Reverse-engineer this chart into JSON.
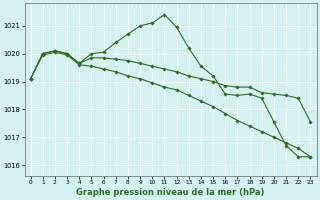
{
  "title": "Graphe pression niveau de la mer (hPa)",
  "background_color": "#d4f0f0",
  "grid_color": "#b8dede",
  "line_color": "#2d6e1e",
  "ylim": [
    1015.6,
    1021.8
  ],
  "xlim": [
    -0.5,
    23.5
  ],
  "yticks": [
    1016,
    1017,
    1018,
    1019,
    1020,
    1021
  ],
  "xticks": [
    0,
    1,
    2,
    3,
    4,
    5,
    6,
    7,
    8,
    9,
    10,
    11,
    12,
    13,
    14,
    15,
    16,
    17,
    18,
    19,
    20,
    21,
    22,
    23
  ],
  "series1_x": [
    0,
    1,
    2,
    3,
    4,
    5,
    6,
    7,
    8,
    9,
    10,
    11,
    12,
    13,
    14,
    15,
    16,
    17,
    18,
    19,
    20,
    21,
    22,
    23
  ],
  "series1_y": [
    1019.1,
    1020.0,
    1020.1,
    1020.0,
    1019.65,
    1020.0,
    1020.05,
    1020.4,
    1020.7,
    1021.0,
    1021.1,
    1021.4,
    1020.95,
    1020.2,
    1019.55,
    1019.2,
    1018.55,
    1018.5,
    1018.55,
    1018.4,
    1017.55,
    1016.7,
    1016.3,
    1016.3
  ],
  "series2_x": [
    0,
    1,
    2,
    3,
    4,
    5,
    6,
    7,
    8,
    9,
    10,
    11,
    12,
    13,
    14,
    15,
    16,
    17,
    18,
    19,
    20,
    21,
    22,
    23
  ],
  "series2_y": [
    1019.1,
    1020.0,
    1020.1,
    1020.0,
    1019.65,
    1019.85,
    1019.85,
    1019.8,
    1019.75,
    1019.65,
    1019.55,
    1019.45,
    1019.35,
    1019.2,
    1019.1,
    1019.0,
    1018.85,
    1018.8,
    1018.8,
    1018.6,
    1018.55,
    1018.5,
    1018.4,
    1017.55
  ],
  "series3_x": [
    0,
    1,
    2,
    3,
    4,
    5,
    6,
    7,
    8,
    9,
    10,
    11,
    12,
    13,
    14,
    15,
    16,
    17,
    18,
    19,
    20,
    21,
    22,
    23
  ],
  "series3_y": [
    1019.1,
    1019.95,
    1020.05,
    1019.95,
    1019.6,
    1019.55,
    1019.45,
    1019.35,
    1019.2,
    1019.1,
    1018.95,
    1018.8,
    1018.7,
    1018.5,
    1018.3,
    1018.1,
    1017.85,
    1017.6,
    1017.4,
    1017.2,
    1017.0,
    1016.8,
    1016.6,
    1016.3
  ]
}
